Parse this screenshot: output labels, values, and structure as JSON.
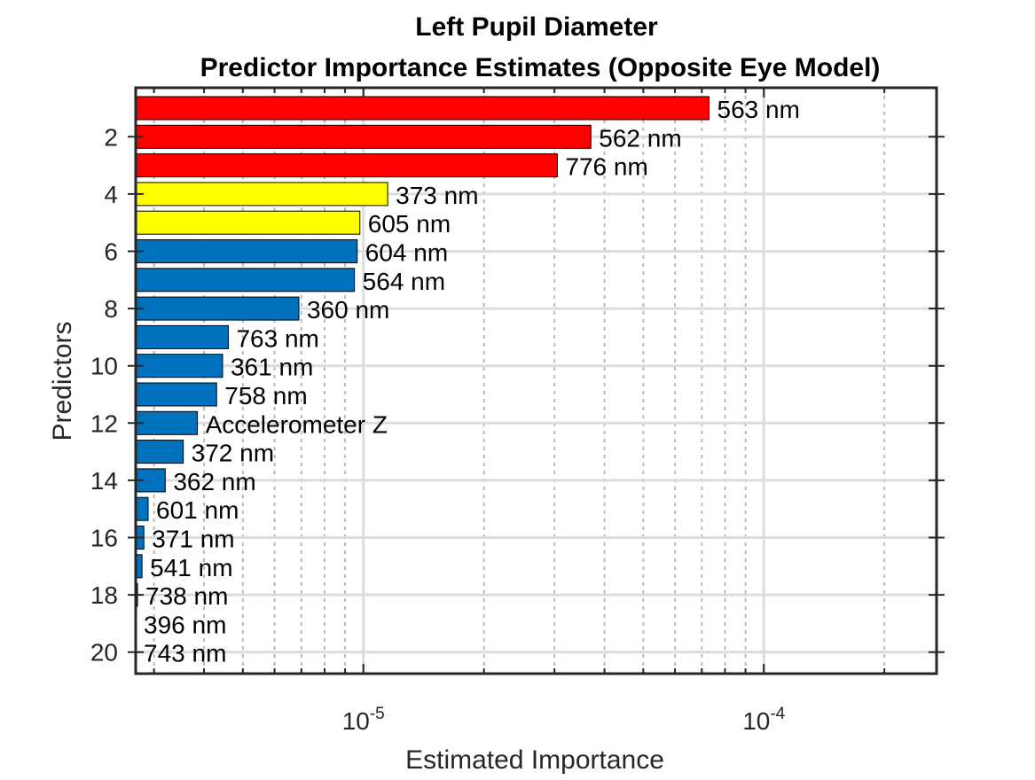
{
  "chart_data": {
    "type": "bar",
    "orientation": "horizontal",
    "title_line1": "Left Pupil Diameter",
    "title_line2": "Predictor Importance Estimates (Opposite Eye Model)",
    "xlabel": "Estimated Importance",
    "ylabel": "Predictors",
    "x_scale": "log",
    "xlim": [
      2.7e-06,
      0.00027
    ],
    "x_ticks": [
      {
        "base": "10",
        "exp": "-5",
        "value": 1e-05
      },
      {
        "base": "10",
        "exp": "-4",
        "value": 0.0001
      }
    ],
    "y_tick_labels": [
      "2",
      "4",
      "6",
      "8",
      "10",
      "12",
      "14",
      "16",
      "18",
      "20"
    ],
    "grid": true,
    "colors": {
      "red": "#ff0000",
      "yellow": "#ffff00",
      "blue": "#0072bd"
    },
    "bars": [
      {
        "rank": 1,
        "label": "563 nm",
        "value": 7.3e-05,
        "color": "red"
      },
      {
        "rank": 2,
        "label": "562 nm",
        "value": 3.7e-05,
        "color": "red"
      },
      {
        "rank": 3,
        "label": "776 nm",
        "value": 3.05e-05,
        "color": "red"
      },
      {
        "rank": 4,
        "label": "373 nm",
        "value": 1.15e-05,
        "color": "yellow"
      },
      {
        "rank": 5,
        "label": "605 nm",
        "value": 9.8e-06,
        "color": "yellow"
      },
      {
        "rank": 6,
        "label": "604 nm",
        "value": 9.65e-06,
        "color": "blue"
      },
      {
        "rank": 7,
        "label": "564 nm",
        "value": 9.5e-06,
        "color": "blue"
      },
      {
        "rank": 8,
        "label": "360 nm",
        "value": 6.9e-06,
        "color": "blue"
      },
      {
        "rank": 9,
        "label": "763 nm",
        "value": 4.6e-06,
        "color": "blue"
      },
      {
        "rank": 10,
        "label": "361 nm",
        "value": 4.45e-06,
        "color": "blue"
      },
      {
        "rank": 11,
        "label": "758 nm",
        "value": 4.3e-06,
        "color": "blue"
      },
      {
        "rank": 12,
        "label": "Accelerometer Z",
        "value": 3.85e-06,
        "color": "blue"
      },
      {
        "rank": 13,
        "label": "372 nm",
        "value": 3.55e-06,
        "color": "blue"
      },
      {
        "rank": 14,
        "label": "362 nm",
        "value": 3.2e-06,
        "color": "blue"
      },
      {
        "rank": 15,
        "label": "601 nm",
        "value": 2.9e-06,
        "color": "blue"
      },
      {
        "rank": 16,
        "label": "371 nm",
        "value": 2.83e-06,
        "color": "blue"
      },
      {
        "rank": 17,
        "label": "541 nm",
        "value": 2.8e-06,
        "color": "blue"
      },
      {
        "rank": 18,
        "label": "738 nm",
        "value": 2.72e-06,
        "color": "blue"
      },
      {
        "rank": 19,
        "label": "396 nm",
        "value": 0,
        "color": "blue"
      },
      {
        "rank": 20,
        "label": "743 nm",
        "value": 0,
        "color": "blue"
      }
    ]
  }
}
